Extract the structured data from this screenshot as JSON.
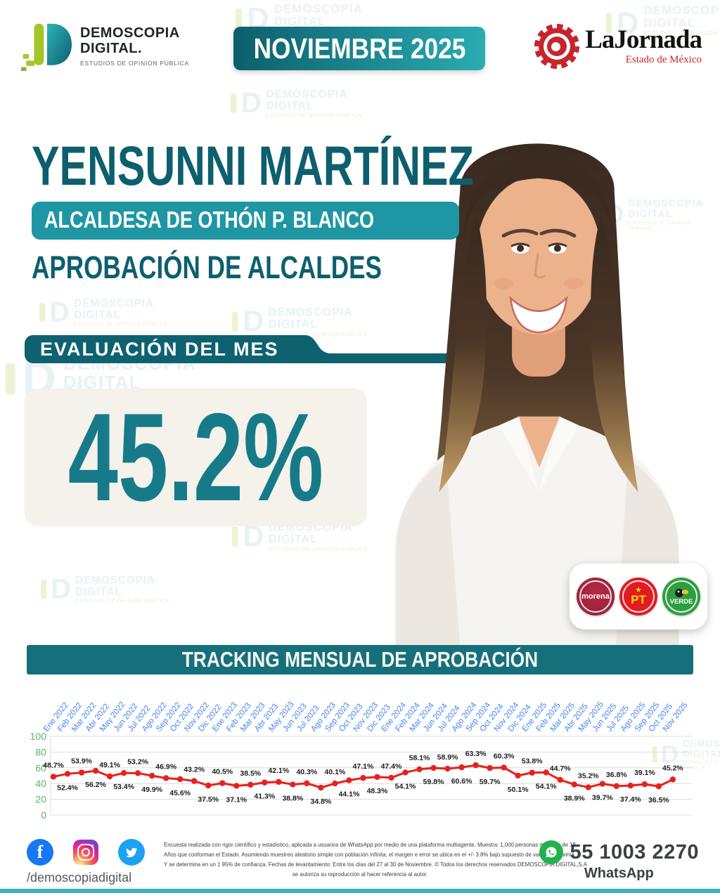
{
  "header": {
    "brand": {
      "line1": "DEMOSCOPIA",
      "line2": "DIGITAL.",
      "tagline": "ESTUDIOS DE OPINIÓN PÚBLICA"
    },
    "banner_label": "NOVIEMBRE 2025",
    "partner": {
      "name": "LaJornada",
      "region": "Estado de México"
    }
  },
  "profile": {
    "name": "YENSUNNI MARTÍNEZ",
    "role_badge": "ALCALDESA DE OTHÓN P. BLANCO",
    "section_title": "APROBACIÓN DE ALCALDES"
  },
  "evaluation": {
    "label": "EVALUACIÓN DEL MES",
    "value": "45.2%"
  },
  "parties": {
    "p1": "morena",
    "p2": "PT",
    "p3": "VERDE"
  },
  "chart_data": {
    "type": "line",
    "title": "TRACKING MENSUAL DE APROBACIÓN",
    "x": [
      "Ene 2022",
      "Feb 2022",
      "Mar 2022",
      "Abr 2022",
      "May 2022",
      "Jun 2022",
      "Jul 2022",
      "Ago 2022",
      "Sep 2022",
      "Oct 2022",
      "Nov 2022",
      "Dic 2022",
      "Ene 2023",
      "Feb 2023",
      "Mar 2023",
      "Abr 2023",
      "May 2023",
      "Jun 2023",
      "Jul 2023",
      "Ago 2023",
      "Sep 2023",
      "Oct 2023",
      "Nov 2023",
      "Dic 2023",
      "Ene 2024",
      "Feb 2024",
      "Mar 2024",
      "Jun 2024",
      "Jul 2024",
      "Ago 2024",
      "Sep 2024",
      "Oct 2024",
      "Nov 2024",
      "Dic 2024",
      "Ene 2025",
      "Feb 2025",
      "Mar 2025",
      "Abr 2025",
      "May 2025",
      "Jun 2025",
      "Jul 2025",
      "Ago 2025",
      "Sep 2025",
      "Oct 2025",
      "Nov 2025"
    ],
    "values": [
      48.7,
      52.4,
      53.9,
      56.2,
      49.1,
      53.4,
      53.2,
      49.9,
      46.9,
      45.6,
      43.2,
      37.5,
      40.5,
      37.1,
      38.5,
      41.3,
      42.1,
      38.8,
      40.3,
      34.8,
      40.1,
      44.1,
      47.1,
      48.3,
      47.4,
      54.1,
      58.1,
      59.8,
      58.9,
      60.6,
      63.3,
      59.7,
      60.3,
      50.1,
      53.8,
      54.1,
      44.7,
      38.9,
      35.2,
      39.7,
      36.8,
      37.4,
      39.1,
      36.5,
      45.2
    ],
    "value_label_suffix": "%",
    "ylim": [
      0,
      100
    ],
    "yticks": [
      0,
      20,
      40,
      60,
      80,
      100
    ],
    "grid": true,
    "legend": "none",
    "line_color": "#e8211c",
    "xtick_color": "#4285f4",
    "ytick_color": "#53b966"
  },
  "watermark": {
    "line1": "DEMOSCOPIA",
    "line2": "DIGITAL",
    "line3": "ESTUDIOS DE OPINIÓN PÚBLICA"
  },
  "footer": {
    "social_handle": "/demoscopiadigital",
    "disclaimer_lines": [
      "Encuesta realizada con rigor científico y estadístico, aplicada a usuarios de WhatsApp por medio de una plataforma multiagente. Muestra: 1,000 personas mayores de 18",
      "Años que conforman el Estado. Asumiendo muestreo aleatorio simple con población infinita, el margen e error se ubica en el +/- 3.8% bajo supuesto de varianza máxima",
      "Y se determina en un ‡ 95% de confianza. Fechas de levantamiento: Entre los días del 27 al 30 de Noviembre. © Todos los derechos reservados DEMOSCOPIA DIGITAL,S.A",
      "se autoriza su reproducción al hacer referencia al autor."
    ],
    "phone": "55 1003 2270",
    "phone_label": "WhatsApp"
  }
}
